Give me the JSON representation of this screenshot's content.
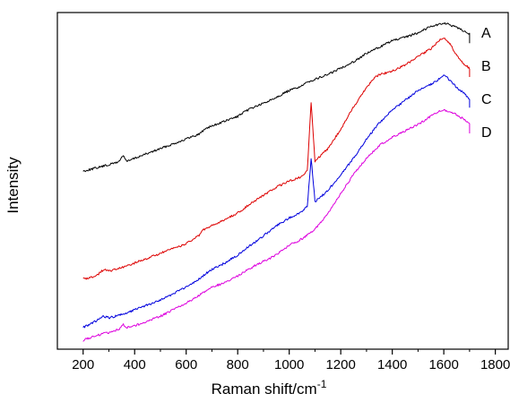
{
  "chart_data": {
    "type": "line",
    "title": "",
    "xlabel": "Raman shift/cm",
    "xlabel_superscript": "-1",
    "ylabel": "Intensity",
    "xlim": [
      100,
      1850
    ],
    "ylim": [
      0,
      1
    ],
    "xticks": [
      200,
      400,
      600,
      800,
      1000,
      1200,
      1400,
      1600,
      1800
    ],
    "y_tick_labels_shown": false,
    "grid": false,
    "legend": "none (series labelled at right end of curves)",
    "series": [
      {
        "name": "A",
        "color": "#000000",
        "x": [
          200,
          250,
          300,
          340,
          355,
          370,
          400,
          450,
          500,
          550,
          600,
          650,
          680,
          700,
          750,
          800,
          850,
          900,
          950,
          1000,
          1050,
          1080,
          1100,
          1150,
          1200,
          1250,
          1300,
          1350,
          1400,
          1450,
          1500,
          1550,
          1580,
          1600,
          1620,
          1650,
          1680,
          1700
        ],
        "y": [
          0.53,
          0.54,
          0.55,
          0.56,
          0.58,
          0.56,
          0.57,
          0.585,
          0.6,
          0.615,
          0.63,
          0.645,
          0.665,
          0.67,
          0.685,
          0.7,
          0.725,
          0.74,
          0.76,
          0.78,
          0.795,
          0.81,
          0.815,
          0.83,
          0.85,
          0.87,
          0.895,
          0.915,
          0.935,
          0.945,
          0.96,
          0.98,
          0.985,
          0.99,
          0.985,
          0.975,
          0.965,
          0.955
        ]
      },
      {
        "name": "B",
        "color": "#dd0000",
        "x": [
          200,
          250,
          280,
          300,
          350,
          400,
          450,
          500,
          550,
          600,
          650,
          660,
          700,
          750,
          800,
          850,
          900,
          950,
          1000,
          1040,
          1070,
          1085,
          1100,
          1150,
          1200,
          1250,
          1300,
          1330,
          1350,
          1400,
          1450,
          1500,
          1550,
          1580,
          1600,
          1620,
          1650,
          1680,
          1700
        ],
        "y": [
          0.195,
          0.205,
          0.225,
          0.22,
          0.23,
          0.245,
          0.26,
          0.275,
          0.29,
          0.305,
          0.33,
          0.345,
          0.36,
          0.38,
          0.4,
          0.43,
          0.455,
          0.48,
          0.5,
          0.51,
          0.53,
          0.745,
          0.56,
          0.6,
          0.66,
          0.73,
          0.79,
          0.82,
          0.83,
          0.84,
          0.86,
          0.885,
          0.91,
          0.935,
          0.945,
          0.93,
          0.89,
          0.86,
          0.85
        ]
      },
      {
        "name": "C",
        "color": "#0000dd",
        "x": [
          200,
          250,
          280,
          300,
          350,
          400,
          450,
          500,
          550,
          600,
          650,
          680,
          700,
          750,
          800,
          850,
          900,
          950,
          1000,
          1040,
          1070,
          1085,
          1100,
          1150,
          1200,
          1250,
          1300,
          1350,
          1400,
          1450,
          1500,
          1550,
          1580,
          1600,
          1620,
          1650,
          1680,
          1700
        ],
        "y": [
          0.045,
          0.065,
          0.08,
          0.075,
          0.085,
          0.1,
          0.115,
          0.13,
          0.15,
          0.17,
          0.195,
          0.215,
          0.225,
          0.245,
          0.27,
          0.3,
          0.33,
          0.36,
          0.385,
          0.4,
          0.42,
          0.57,
          0.435,
          0.47,
          0.52,
          0.57,
          0.63,
          0.68,
          0.72,
          0.75,
          0.78,
          0.8,
          0.815,
          0.83,
          0.815,
          0.79,
          0.77,
          0.755
        ]
      },
      {
        "name": "D",
        "color": "#dd00dd",
        "x": [
          200,
          250,
          300,
          340,
          355,
          370,
          400,
          450,
          500,
          550,
          600,
          650,
          680,
          700,
          750,
          800,
          850,
          900,
          950,
          1000,
          1050,
          1100,
          1150,
          1200,
          1250,
          1300,
          1350,
          1400,
          1450,
          1500,
          1550,
          1580,
          1600,
          1620,
          1650,
          1680,
          1700
        ],
        "y": [
          0.005,
          0.02,
          0.03,
          0.04,
          0.055,
          0.045,
          0.05,
          0.065,
          0.08,
          0.1,
          0.12,
          0.145,
          0.16,
          0.17,
          0.185,
          0.205,
          0.23,
          0.25,
          0.27,
          0.3,
          0.32,
          0.35,
          0.4,
          0.46,
          0.52,
          0.57,
          0.61,
          0.635,
          0.655,
          0.675,
          0.7,
          0.715,
          0.72,
          0.715,
          0.705,
          0.69,
          0.675
        ]
      }
    ]
  }
}
